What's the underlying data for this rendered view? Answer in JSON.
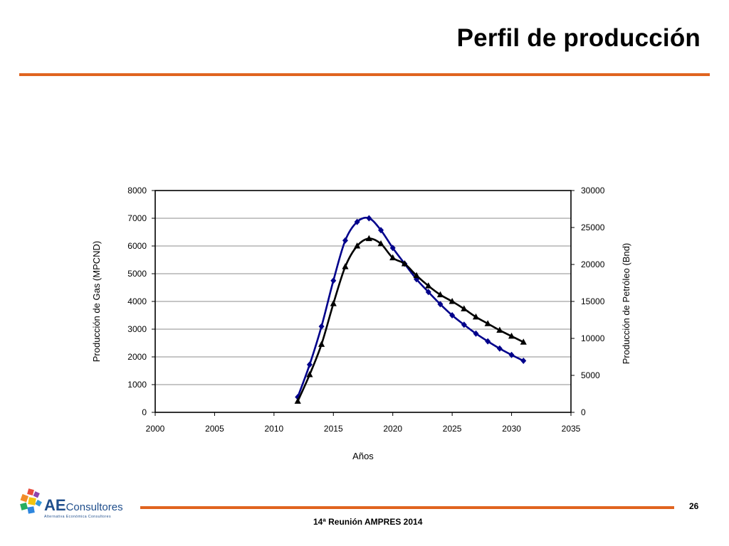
{
  "slide": {
    "title": "Perfil de producción",
    "page_number": "26",
    "footer": "14ª Reunión AMPRES 2014"
  },
  "logo": {
    "name": "AE Consultores",
    "wordmark_main": "AE",
    "wordmark_rest": "Consultores",
    "tagline": "Alternativa Económica Consultores"
  },
  "colors": {
    "accent": "#e0641f",
    "gas_series": "#00008b",
    "oil_series": "#000000"
  },
  "chart_data": {
    "type": "scatter",
    "xlabel": "Años",
    "ylabel": "Producción de Gas (MPCND)",
    "y2label": "Producción de Petróleo (Bnd)",
    "xlim": [
      2000,
      2035
    ],
    "ylim": [
      0,
      8000
    ],
    "y2lim": [
      0,
      30000
    ],
    "xticks": [
      2000,
      2005,
      2010,
      2015,
      2020,
      2025,
      2030,
      2035
    ],
    "yticks": [
      0,
      1000,
      2000,
      3000,
      4000,
      5000,
      6000,
      7000,
      8000
    ],
    "y2ticks": [
      0,
      5000,
      10000,
      15000,
      20000,
      25000,
      30000
    ],
    "grid": true,
    "series": [
      {
        "axis": "left",
        "marker": "diamond",
        "color": "#00008b",
        "x": [
          2012,
          2013,
          2014,
          2015,
          2016,
          2017,
          2018,
          2019,
          2020,
          2021,
          2022,
          2023,
          2024,
          2025,
          2026,
          2027,
          2028,
          2029,
          2030,
          2031
        ],
        "y": [
          550,
          1720,
          3100,
          4750,
          6200,
          6870,
          7000,
          6570,
          5930,
          5360,
          4800,
          4340,
          3900,
          3500,
          3160,
          2840,
          2560,
          2300,
          2070,
          1860
        ]
      },
      {
        "axis": "right",
        "marker": "triangle",
        "color": "#000000",
        "x": [
          2012,
          2013,
          2014,
          2015,
          2016,
          2017,
          2018,
          2019,
          2020,
          2021,
          2022,
          2023,
          2024,
          2025,
          2026,
          2027,
          2028,
          2029,
          2030,
          2031
        ],
        "y": [
          1500,
          5100,
          9200,
          14700,
          19700,
          22500,
          23500,
          22800,
          20900,
          20100,
          18500,
          17100,
          15900,
          15000,
          14000,
          12900,
          12000,
          11100,
          10300,
          9500
        ]
      }
    ]
  }
}
